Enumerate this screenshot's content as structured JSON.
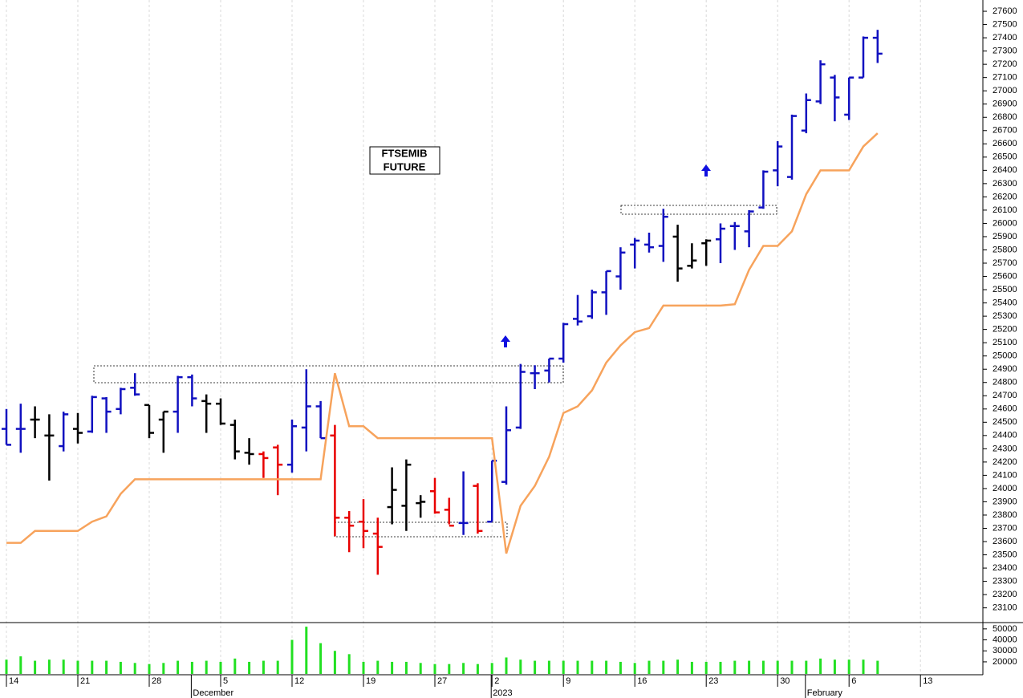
{
  "chart_data": [
    {
      "type": "ohlc",
      "title_lines": [
        "FTSEMIB",
        "FUTURE"
      ],
      "categories": [
        "14",
        null,
        null,
        null,
        null,
        "21",
        null,
        null,
        null,
        null,
        "28",
        null,
        null,
        null,
        null,
        "5",
        null,
        null,
        null,
        null,
        "12",
        null,
        null,
        null,
        null,
        "19",
        null,
        null,
        null,
        null,
        "27",
        null,
        null,
        null,
        "2",
        null,
        null,
        null,
        null,
        "9",
        null,
        null,
        null,
        null,
        "16",
        null,
        null,
        null,
        null,
        "23",
        null,
        null,
        null,
        null,
        "30",
        null,
        null,
        null,
        null,
        "6",
        null,
        null,
        null,
        null,
        "13"
      ],
      "months": [
        null,
        null,
        null,
        null,
        null,
        null,
        null,
        null,
        null,
        null,
        null,
        null,
        null,
        "December",
        null,
        null,
        null,
        null,
        null,
        null,
        null,
        null,
        null,
        null,
        null,
        null,
        null,
        null,
        null,
        null,
        null,
        null,
        null,
        null,
        "2023",
        null,
        null,
        null,
        null,
        null,
        null,
        null,
        null,
        null,
        null,
        null,
        null,
        null,
        null,
        null,
        null,
        null,
        null,
        null,
        null,
        null,
        "February",
        null,
        null,
        null,
        null,
        null,
        null,
        null,
        null
      ],
      "open": [
        24450,
        24450,
        24520,
        24400,
        24320,
        24450,
        24430,
        24680,
        24600,
        24760,
        24630,
        24520,
        24580,
        24840,
        24660,
        24640,
        24480,
        24270,
        24260,
        24310,
        24180,
        24460,
        24620,
        24400,
        23780,
        23750,
        23660,
        23860,
        23870,
        23890,
        23980,
        23840,
        23740,
        24020,
        23750,
        24050,
        24460,
        24870,
        24890,
        24980,
        25280,
        25300,
        25480,
        25600,
        25840,
        25840,
        25830,
        25900,
        25680,
        25850,
        25880,
        25980,
        25940,
        26120,
        26400,
        26350,
        26700,
        26920,
        27100,
        26820,
        27100,
        27400,
        null,
        null,
        null
      ],
      "high": [
        24600,
        24640,
        24620,
        24560,
        24580,
        24570,
        24700,
        24690,
        24760,
        24870,
        24630,
        24580,
        24850,
        24860,
        24710,
        24680,
        24520,
        24380,
        24280,
        24330,
        24520,
        24900,
        24660,
        24480,
        23830,
        23920,
        23780,
        24160,
        24220,
        23950,
        24080,
        23930,
        24130,
        24040,
        24210,
        24620,
        24940,
        24930,
        24980,
        25250,
        25460,
        25500,
        25640,
        25820,
        25890,
        25930,
        26110,
        25990,
        25850,
        25880,
        26000,
        26010,
        26100,
        26400,
        26620,
        26820,
        26980,
        27230,
        27120,
        27100,
        27410,
        27460,
        null,
        null,
        null
      ],
      "low": [
        24330,
        24270,
        24380,
        24060,
        24280,
        24340,
        24420,
        24420,
        24560,
        24700,
        24380,
        24270,
        24420,
        24620,
        24420,
        24480,
        24220,
        24180,
        24080,
        23950,
        24120,
        24280,
        24380,
        23640,
        23520,
        23550,
        23350,
        23730,
        23680,
        23780,
        23810,
        23730,
        23650,
        23660,
        23750,
        24030,
        24450,
        24750,
        24800,
        24950,
        25230,
        25280,
        25310,
        25500,
        25660,
        25780,
        25710,
        25560,
        25660,
        25680,
        25700,
        25800,
        25820,
        26110,
        26280,
        26330,
        26680,
        26900,
        26770,
        26780,
        27100,
        27210,
        null,
        null,
        null
      ],
      "close": [
        24330,
        24450,
        24520,
        24400,
        24560,
        24420,
        24690,
        24580,
        24750,
        24710,
        24420,
        24580,
        24840,
        24680,
        24640,
        24490,
        24280,
        24260,
        24230,
        24180,
        24470,
        24620,
        24380,
        23780,
        23720,
        23680,
        23560,
        23990,
        24180,
        23900,
        23820,
        23720,
        23740,
        23680,
        24210,
        24440,
        24880,
        24870,
        24980,
        25240,
        25260,
        25480,
        25640,
        25780,
        25870,
        25820,
        26050,
        25660,
        25720,
        25870,
        25960,
        25980,
        26090,
        26390,
        26580,
        26810,
        26930,
        27200,
        26950,
        27100,
        27400,
        27280,
        null,
        null,
        null
      ],
      "bar_colors": [
        "#1010c0",
        "#1010c0",
        "#000000",
        "#000000",
        "#1010c0",
        "#000000",
        "#1010c0",
        "#1010c0",
        "#1010c0",
        "#1010c0",
        "#000000",
        "#000000",
        "#1010c0",
        "#1010c0",
        "#000000",
        "#000000",
        "#000000",
        "#000000",
        "#e80000",
        "#e80000",
        "#1010c0",
        "#1010c0",
        "#1010c0",
        "#e80000",
        "#e80000",
        "#e80000",
        "#e80000",
        "#000000",
        "#000000",
        "#000000",
        "#e80000",
        "#e80000",
        "#1010c0",
        "#e80000",
        "#1010c0",
        "#1010c0",
        "#1010c0",
        "#1010c0",
        "#1010c0",
        "#1010c0",
        "#1010c0",
        "#1010c0",
        "#1010c0",
        "#1010c0",
        "#1010c0",
        "#1010c0",
        "#1010c0",
        "#000000",
        "#000000",
        "#000000",
        "#1010c0",
        "#1010c0",
        "#1010c0",
        "#1010c0",
        "#1010c0",
        "#1010c0",
        "#1010c0",
        "#1010c0",
        "#1010c0",
        "#1010c0",
        "#1010c0",
        "#1010c0",
        null,
        null,
        null
      ],
      "line": {
        "color": "#f7a35c",
        "values": [
          23590,
          23590,
          23680,
          23680,
          23680,
          23680,
          23750,
          23790,
          23960,
          24070,
          24070,
          24070,
          24070,
          24070,
          24070,
          24070,
          24070,
          24070,
          24070,
          24070,
          24070,
          24070,
          24070,
          24870,
          24470,
          24470,
          24380,
          24380,
          24380,
          24380,
          24380,
          24380,
          24380,
          24380,
          24380,
          23510,
          23870,
          24020,
          24240,
          24570,
          24620,
          24740,
          24950,
          25080,
          25180,
          25210,
          25380,
          25380,
          25380,
          25380,
          25380,
          25390,
          25650,
          25830,
          25830,
          25940,
          26220,
          26400,
          26400,
          26400,
          26580,
          26680,
          null,
          null,
          null
        ]
      },
      "ylim": [
        22995,
        27685
      ],
      "yticks": [
        23100,
        23200,
        23300,
        23400,
        23500,
        23600,
        23700,
        23800,
        23900,
        24000,
        24100,
        24200,
        24300,
        24400,
        24500,
        24600,
        24700,
        24800,
        24900,
        25000,
        25100,
        25200,
        25300,
        25400,
        25500,
        25600,
        25700,
        25800,
        25900,
        26000,
        26100,
        26200,
        26300,
        26400,
        26500,
        26600,
        26700,
        26800,
        26900,
        27000,
        27100,
        27200,
        27300,
        27400,
        27500,
        27600
      ]
    },
    {
      "type": "bar",
      "color": "#22e022",
      "values": [
        22000,
        25000,
        21000,
        22000,
        22000,
        21000,
        21000,
        21000,
        20000,
        19000,
        18000,
        19000,
        21000,
        20000,
        21000,
        20000,
        23000,
        20000,
        21000,
        21000,
        40000,
        52000,
        37000,
        30000,
        27000,
        20000,
        21000,
        20000,
        20000,
        19000,
        18000,
        18000,
        19000,
        18000,
        19000,
        24000,
        22000,
        21000,
        21000,
        21000,
        21000,
        21000,
        21000,
        20000,
        19000,
        21000,
        21000,
        22000,
        20000,
        20000,
        20000,
        21000,
        21000,
        21000,
        21000,
        21000,
        21000,
        23000,
        22000,
        22000,
        22000,
        21000,
        null,
        null,
        null
      ],
      "ylim": [
        9000,
        55000
      ],
      "yticks": [
        20000,
        30000,
        40000,
        50000
      ]
    }
  ]
}
